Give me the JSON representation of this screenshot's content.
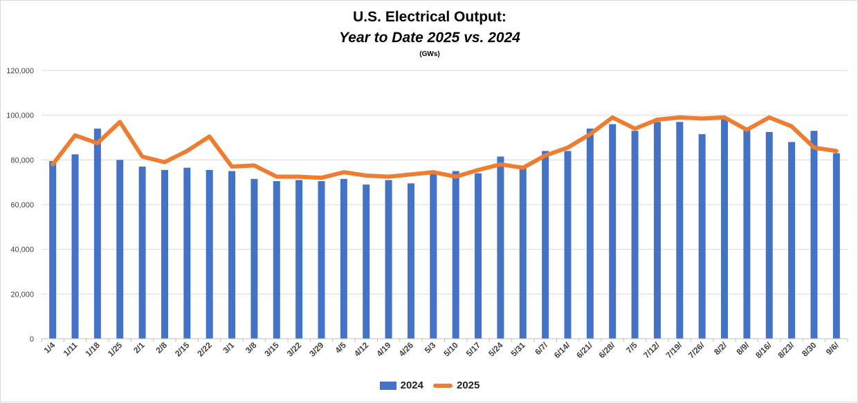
{
  "chart_data": {
    "type": "bar",
    "title": "U.S. Electrical Output:",
    "subtitle": "Year to Date 2025 vs. 2024",
    "unit_label": "(GWs)",
    "xlabel": "",
    "ylabel": "",
    "ylim": [
      0,
      120000
    ],
    "yticks": [
      0,
      20000,
      40000,
      60000,
      80000,
      100000,
      120000
    ],
    "ytick_labels": [
      "0",
      "20,000",
      "40,000",
      "60,000",
      "80,000",
      "100,000",
      "120,000"
    ],
    "grid": true,
    "legend_position": "bottom",
    "categories": [
      "1/4",
      "1/11",
      "1/18",
      "1/25",
      "2/1",
      "2/8",
      "2/15",
      "2/22",
      "3/1",
      "3/8",
      "3/15",
      "3/22",
      "3/29",
      "4/5",
      "4/12",
      "4/19",
      "4/26",
      "5/3",
      "5/10",
      "5/17",
      "5/24",
      "5/31",
      "6/7/",
      "6/14/",
      "6/21/",
      "6/28/",
      "7/5",
      "7/12/",
      "7/19/",
      "7/26/",
      "8/2/",
      "8/9/",
      "8/16/",
      "8/23/",
      "8/30",
      "9/6/"
    ],
    "series": [
      {
        "name": "2024",
        "type": "bar",
        "color": "#4472c4",
        "values": [
          79500,
          82500,
          94000,
          80000,
          77000,
          75500,
          76500,
          75500,
          75000,
          71500,
          70500,
          71000,
          70500,
          71500,
          69000,
          71000,
          69500,
          74000,
          75000,
          74000,
          81500,
          77500,
          84000,
          84000,
          94000,
          96000,
          93000,
          97000,
          97000,
          91500,
          99000,
          93500,
          92500,
          88000,
          93000,
          83000
        ]
      },
      {
        "name": "2025",
        "type": "line",
        "color": "#ed7d31",
        "values": [
          78000,
          91000,
          87500,
          97000,
          81500,
          79000,
          84000,
          90500,
          77000,
          77500,
          72500,
          72500,
          72000,
          74500,
          73000,
          72500,
          73500,
          74500,
          72500,
          75500,
          78000,
          76500,
          82000,
          85500,
          91500,
          99000,
          94000,
          98000,
          99000,
          98500,
          99000,
          93500,
          99000,
          95000,
          85500,
          84000
        ]
      }
    ]
  }
}
